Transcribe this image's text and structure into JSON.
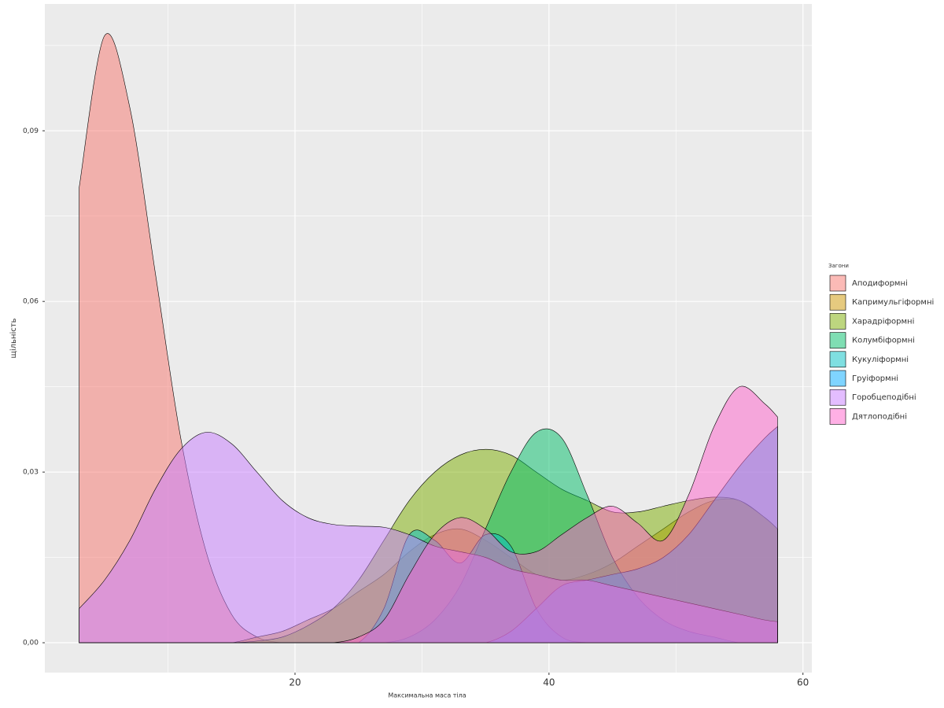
{
  "chart_data": {
    "type": "density",
    "x_label": "Максимальна маса тіла",
    "y_label": "щільність",
    "legend_title": "Загони",
    "x": [
      3,
      5,
      7,
      9,
      11,
      13,
      15,
      17,
      19,
      21,
      23,
      25,
      27,
      29,
      31,
      33,
      35,
      37,
      39,
      41,
      43,
      45,
      47,
      49,
      51,
      53,
      55,
      57,
      58
    ],
    "series": [
      {
        "name": "Аподиформні",
        "color": "#F8766D",
        "values": [
          0.08,
          0.1067,
          0.094,
          0.065,
          0.036,
          0.016,
          0.005,
          0.001,
          0,
          0,
          0,
          0,
          0,
          0,
          0,
          0,
          0,
          0,
          0,
          0,
          0,
          0,
          0,
          0,
          0,
          0,
          0,
          0,
          0
        ]
      },
      {
        "name": "Капримульгіформні",
        "color": "#CD9600",
        "values": [
          0,
          0,
          0,
          0,
          0,
          0,
          0,
          0.001,
          0.002,
          0.004,
          0.006,
          0.009,
          0.012,
          0.016,
          0.019,
          0.02,
          0.018,
          0.015,
          0.012,
          0.011,
          0.012,
          0.014,
          0.017,
          0.02,
          0.023,
          0.025,
          0.025,
          0.022,
          0.02
        ]
      },
      {
        "name": "Харадріформні",
        "color": "#7CAE00",
        "values": [
          0,
          0,
          0,
          0,
          0,
          0,
          0,
          0.0003,
          0.001,
          0.003,
          0.006,
          0.011,
          0.018,
          0.025,
          0.03,
          0.033,
          0.034,
          0.033,
          0.03,
          0.027,
          0.025,
          0.023,
          0.023,
          0.024,
          0.025,
          0.0256,
          0.025,
          0.022,
          0.02
        ]
      },
      {
        "name": "Колумбіформні",
        "color": "#00BE67",
        "values": [
          0,
          0,
          0,
          0,
          0,
          0,
          0,
          0,
          0,
          0,
          0,
          0,
          0,
          0.001,
          0.004,
          0.01,
          0.02,
          0.03,
          0.037,
          0.036,
          0.026,
          0.015,
          0.008,
          0.004,
          0.002,
          0.001,
          0,
          0,
          0
        ]
      },
      {
        "name": "Кукуліформні",
        "color": "#00BFC4",
        "values": [
          0,
          0,
          0,
          0,
          0,
          0,
          0,
          0,
          0,
          0,
          0,
          0,
          0.006,
          0.019,
          0.018,
          0.014,
          0.019,
          0.017,
          0.006,
          0.001,
          0,
          0,
          0,
          0,
          0,
          0,
          0,
          0,
          0
        ]
      },
      {
        "name": "Груіформні",
        "color": "#00A9FF",
        "values": [
          0,
          0,
          0,
          0,
          0,
          0,
          0,
          0,
          0,
          0,
          0,
          0,
          0,
          0,
          0,
          0,
          0,
          0.002,
          0.006,
          0.01,
          0.011,
          0.012,
          0.013,
          0.015,
          0.019,
          0.025,
          0.031,
          0.036,
          0.038
        ]
      },
      {
        "name": "Горобцеподібні",
        "color": "#C77CFF",
        "values": [
          0.006,
          0.011,
          0.018,
          0.027,
          0.034,
          0.037,
          0.035,
          0.03,
          0.025,
          0.022,
          0.0208,
          0.0205,
          0.0203,
          0.019,
          0.017,
          0.016,
          0.015,
          0.013,
          0.012,
          0.011,
          0.011,
          0.01,
          0.009,
          0.008,
          0.007,
          0.006,
          0.005,
          0.004,
          0.0037
        ]
      },
      {
        "name": "Дятлоподібні",
        "color": "#FF61CC",
        "values": [
          0,
          0,
          0,
          0,
          0,
          0,
          0,
          0,
          0,
          0,
          0,
          0.001,
          0.004,
          0.012,
          0.019,
          0.022,
          0.02,
          0.016,
          0.016,
          0.019,
          0.022,
          0.024,
          0.021,
          0.018,
          0.026,
          0.038,
          0.045,
          0.042,
          0.0397
        ]
      }
    ],
    "xlim": [
      0.3,
      60.7
    ],
    "ylim": [
      -0.00525,
      0.1123
    ],
    "xticks": [
      20,
      40,
      60
    ],
    "yticks": [
      {
        "value": 0,
        "label": "0,00"
      },
      {
        "value": 0.03,
        "label": "0,03"
      },
      {
        "value": 0.06,
        "label": "0,06"
      },
      {
        "value": 0.09,
        "label": "0,09"
      }
    ],
    "x_minor_ticks": [
      10,
      30,
      50
    ],
    "y_minor_ticks": [
      0.015,
      0.045,
      0.075,
      0.105
    ],
    "grid": true,
    "legend_position": "right",
    "fill_opacity": 0.5
  }
}
